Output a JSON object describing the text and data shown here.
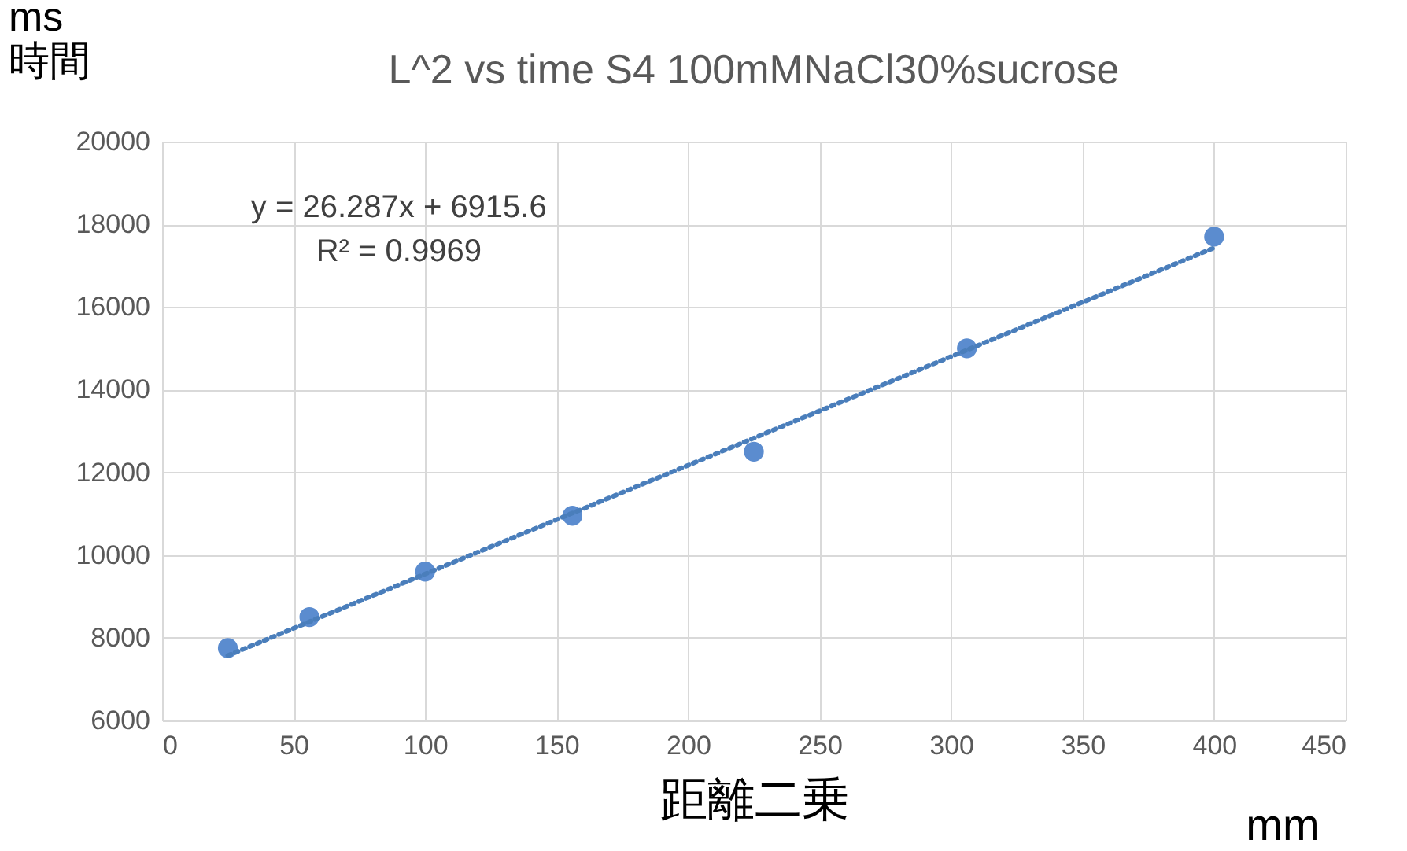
{
  "chart_data": {
    "type": "scatter",
    "title": "L^2 vs time    S4 100mMNaCl30%sucrose",
    "xlabel": "距離二乗",
    "ylabel": "ms 時間",
    "annotations": [
      "y = 26.287x + 6915.6",
      "R² = 0.9969",
      "mm"
    ],
    "series": [
      {
        "color": "#5b8ccf",
        "x": [
          25,
          56,
          100,
          156,
          225,
          306,
          400
        ],
        "values": [
          7750,
          8500,
          9600,
          10950,
          12500,
          15000,
          17700
        ]
      },
      {
        "type": "line",
        "color": "#4a7ebb",
        "line_style": "dotted",
        "marker": "none",
        "x": [
          25,
          400
        ],
        "values": [
          7570,
          17430
        ]
      }
    ],
    "marker": "circle",
    "xlim": [
      0,
      450
    ],
    "xticks": [
      0,
      50,
      100,
      150,
      200,
      250,
      300,
      350,
      400,
      450
    ],
    "ylim": [
      6000,
      20000
    ],
    "yticks": [
      6000,
      8000,
      10000,
      12000,
      14000,
      16000,
      18000,
      20000
    ],
    "grid": true
  }
}
